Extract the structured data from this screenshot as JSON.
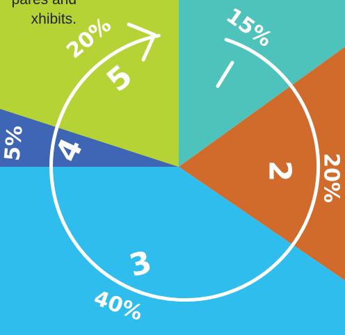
{
  "intro_text": {
    "line1": "pares and",
    "line2": "xhibits."
  },
  "colors": {
    "teal": "#4EC3BC",
    "orange": "#D06B2C",
    "sky_blue": "#2FBDEE",
    "navy": "#3F66B5",
    "lime": "#B5D335",
    "ring": "#FFFFFF"
  },
  "segments": [
    {
      "number": "1",
      "percent": "15%",
      "color": "teal"
    },
    {
      "number": "2",
      "percent": "20%",
      "color": "orange"
    },
    {
      "number": "3",
      "percent": "40%",
      "color": "sky_blue"
    },
    {
      "number": "4",
      "percent": "5%",
      "color": "navy"
    },
    {
      "number": "5",
      "percent": "20%",
      "color": "lime"
    }
  ],
  "cycle_icon": "circular-arrow-icon"
}
